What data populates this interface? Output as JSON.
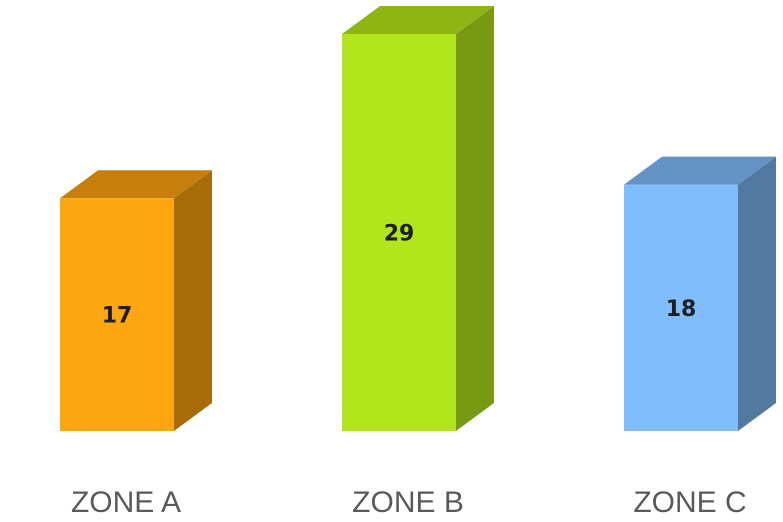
{
  "chart_data": {
    "type": "bar",
    "style": "3d-column",
    "categories": [
      "ZONE A",
      "ZONE B",
      "ZONE C"
    ],
    "values": [
      17,
      29,
      18
    ],
    "data_labels": [
      "17",
      "29",
      "18"
    ],
    "colors": {
      "front": [
        "#fca611",
        "#b3e51d",
        "#80bdfc"
      ],
      "top": [
        "#c77f0c",
        "#8fb514",
        "#6592c4"
      ],
      "side": [
        "#a86d09",
        "#789914",
        "#52799f"
      ]
    },
    "grid": false,
    "legend": "none"
  }
}
